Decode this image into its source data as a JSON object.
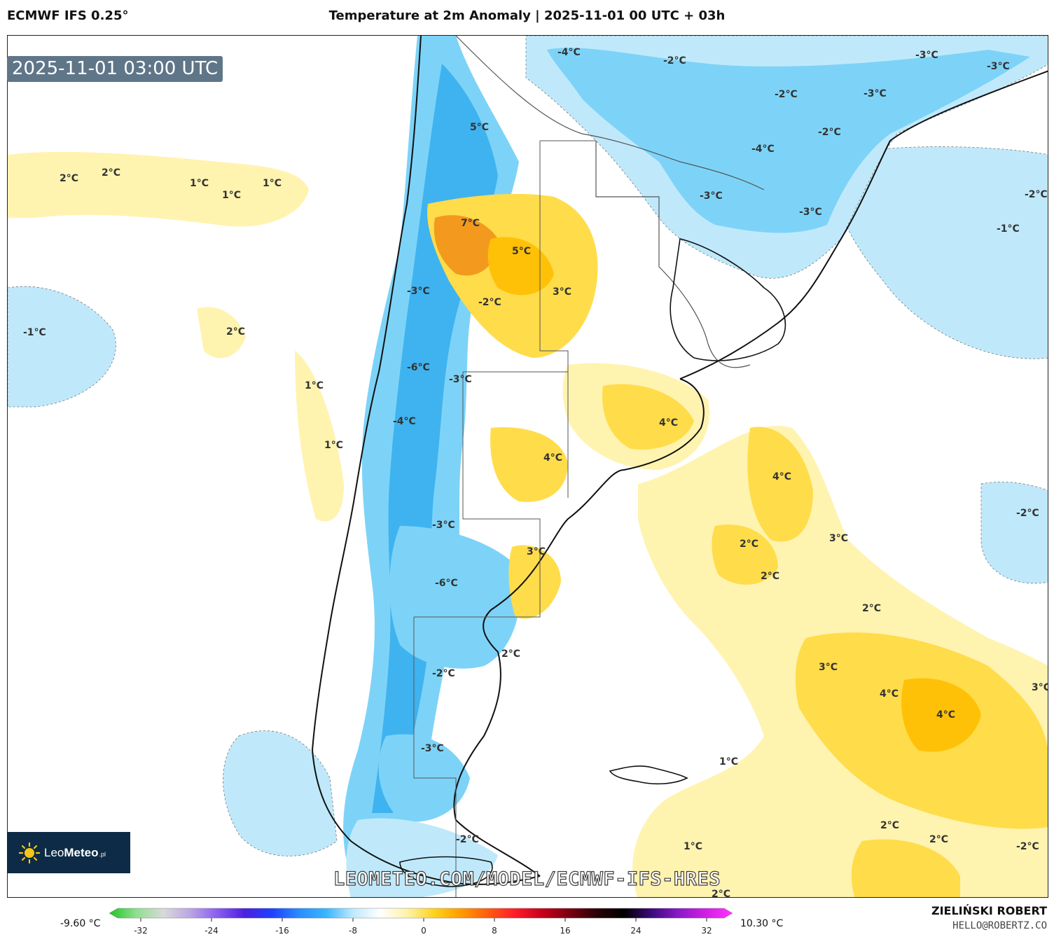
{
  "header": {
    "model": "ECMWF IFS 0.25°",
    "title": "Temperature at 2m Anomaly | 2025-11-01 00 UTC + 03h"
  },
  "timestamp": "2025-11-01 03:00 UTC",
  "brand": {
    "logo_text_light": "Leo",
    "logo_text_bold": "Meteo",
    "logo_suffix": ".pl",
    "watermark": "LEOMETEO.COM/MODEL/ECMWF-IFS-HRES"
  },
  "credit": {
    "name": "ZIELIŃSKI ROBERT",
    "email": "HELLO@ROBERTZ.CO"
  },
  "colorbar": {
    "min_label": "-9.60 °C",
    "max_label": "10.30 °C",
    "ticks": [
      "-32",
      "-24",
      "-16",
      "-8",
      "0",
      "8",
      "16",
      "24",
      "32"
    ],
    "stops": [
      "#22c322",
      "#8fe08f",
      "#d9d9d9",
      "#b9a5e6",
      "#8a5cf0",
      "#4b1fe0",
      "#1e40ff",
      "#2a8cff",
      "#38b6ff",
      "#bfe9ff",
      "#ffffff",
      "#fff2a8",
      "#ffd21a",
      "#ff9a00",
      "#ff5a10",
      "#ff1a2a",
      "#c4001a",
      "#7a0010",
      "#2a0008",
      "#000000",
      "#3a0a7a",
      "#8a1ac8",
      "#d21ee6",
      "#ff33ff"
    ]
  },
  "map": {
    "colors": {
      "cold_light": "#bfe9fb",
      "cold_mid": "#7dd3f7",
      "cold_strong": "#3fb3ef",
      "warm_light": "#fff3b0",
      "warm_mid": "#ffdc4a",
      "warm_strong": "#ffc107",
      "hot": "#f39a1e",
      "land_outline": "#111111",
      "border": "#555555"
    },
    "labels": [
      {
        "text": "-4°C"
      },
      {
        "text": "-2°C"
      },
      {
        "text": "-3°C"
      },
      {
        "text": "-3°C"
      },
      {
        "text": "-2°C"
      },
      {
        "text": "-3°C"
      },
      {
        "text": "-2°C"
      },
      {
        "text": "-4°C"
      },
      {
        "text": "5°C"
      },
      {
        "text": "2°C"
      },
      {
        "text": "2°C"
      },
      {
        "text": "1°C"
      },
      {
        "text": "1°C"
      },
      {
        "text": "1°C"
      },
      {
        "text": "-3°C"
      },
      {
        "text": "-3°C"
      },
      {
        "text": "-2°C"
      },
      {
        "text": "-1°C"
      },
      {
        "text": "7°C"
      },
      {
        "text": "5°C"
      },
      {
        "text": "3°C"
      },
      {
        "text": "-3°C"
      },
      {
        "text": "-2°C"
      },
      {
        "text": "-1°C"
      },
      {
        "text": "2°C"
      },
      {
        "text": "-6°C"
      },
      {
        "text": "-3°C"
      },
      {
        "text": "1°C"
      },
      {
        "text": "4°C"
      },
      {
        "text": "-4°C"
      },
      {
        "text": "1°C"
      },
      {
        "text": "4°C"
      },
      {
        "text": "4°C"
      },
      {
        "text": "-2°C"
      },
      {
        "text": "-3°C"
      },
      {
        "text": "3°C"
      },
      {
        "text": "2°C"
      },
      {
        "text": "3°C"
      },
      {
        "text": "-6°C"
      },
      {
        "text": "2°C"
      },
      {
        "text": "2°C"
      },
      {
        "text": "2°C"
      },
      {
        "text": "-2°C"
      },
      {
        "text": "3°C"
      },
      {
        "text": "4°C"
      },
      {
        "text": "4°C"
      },
      {
        "text": "3°C"
      },
      {
        "text": "-3°C"
      },
      {
        "text": "1°C"
      },
      {
        "text": "2°C"
      },
      {
        "text": "2°C"
      },
      {
        "text": "1°C"
      },
      {
        "text": "-2°C"
      },
      {
        "text": "-2°C"
      },
      {
        "text": "2°C"
      }
    ]
  }
}
